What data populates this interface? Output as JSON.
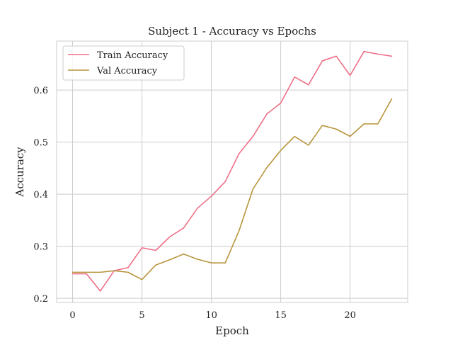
{
  "chart_data": {
    "type": "line",
    "title": "Subject 1 - Accuracy vs Epochs",
    "xlabel": "Epoch",
    "ylabel": "Accuracy",
    "xlim": [
      -1.15,
      24.15
    ],
    "ylim": [
      0.192,
      0.694
    ],
    "xticks": [
      0,
      5,
      10,
      15,
      20
    ],
    "yticks": [
      0.2,
      0.3,
      0.4,
      0.5,
      0.6
    ],
    "ytick_labels": [
      "0.2",
      "0.3",
      "0.4",
      "0.5",
      "0.6"
    ],
    "grid": true,
    "legend_position": "top-left",
    "x": [
      0,
      1,
      2,
      3,
      4,
      5,
      6,
      7,
      8,
      9,
      10,
      11,
      12,
      13,
      14,
      15,
      16,
      17,
      18,
      19,
      20,
      21,
      22,
      23
    ],
    "series": [
      {
        "name": "Train Accuracy",
        "color": "#ee7088",
        "values": [
          0.247,
          0.247,
          0.214,
          0.253,
          0.259,
          0.297,
          0.292,
          0.318,
          0.335,
          0.373,
          0.396,
          0.424,
          0.478,
          0.511,
          0.554,
          0.575,
          0.625,
          0.61,
          0.656,
          0.665,
          0.628,
          0.674,
          0.669,
          0.665
        ]
      },
      {
        "name": "Val Accuracy",
        "color": "#b8953d",
        "values": [
          0.25,
          0.25,
          0.25,
          0.253,
          0.25,
          0.236,
          0.264,
          0.274,
          0.285,
          0.275,
          0.268,
          0.268,
          0.33,
          0.41,
          0.451,
          0.484,
          0.511,
          0.494,
          0.532,
          0.525,
          0.511,
          0.535,
          0.535,
          0.583
        ]
      }
    ]
  }
}
